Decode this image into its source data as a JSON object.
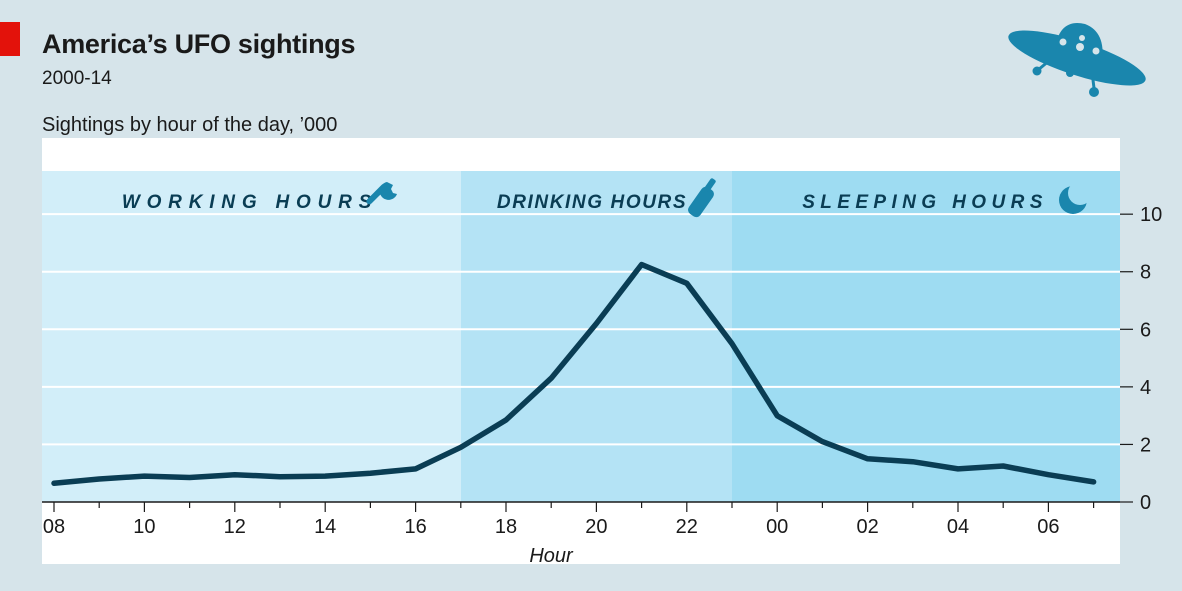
{
  "header": {
    "title": "America’s UFO sightings",
    "subtitle": "2000-14",
    "chart_label": "Sightings by hour of the day, ’000"
  },
  "icons": {
    "brand": "ufo-icon",
    "working": "wrench-icon",
    "drinking": "bottle-icon",
    "sleeping": "moon-icon"
  },
  "colors": {
    "background": "#d6e4ea",
    "plot_area": "#ffffff",
    "band_working": "#d2eef9",
    "band_drinking": "#b4e3f5",
    "band_sleeping": "#9edcf2",
    "line": "#0a3d54",
    "icon": "#1a86ad",
    "accent_red": "#e3120b",
    "text": "#1a1a1a"
  },
  "chart_data": {
    "type": "line",
    "title": "America’s UFO sightings",
    "subtitle": "2000-14",
    "ylabel": "Sightings by hour of the day, ’000",
    "xlabel": "Hour",
    "x": [
      "08",
      "09",
      "10",
      "11",
      "12",
      "13",
      "14",
      "15",
      "16",
      "17",
      "18",
      "19",
      "20",
      "21",
      "22",
      "23",
      "00",
      "01",
      "02",
      "03",
      "04",
      "05",
      "06",
      "07"
    ],
    "x_tick_labels": [
      "08",
      "10",
      "12",
      "14",
      "16",
      "18",
      "20",
      "22",
      "00",
      "02",
      "04",
      "06"
    ],
    "y_ticks": [
      0,
      2,
      4,
      6,
      8,
      10
    ],
    "ylim": [
      0,
      11.5
    ],
    "series": [
      {
        "values": [
          0.65,
          0.8,
          0.9,
          0.85,
          0.95,
          0.88,
          0.9,
          1.0,
          1.15,
          1.9,
          2.85,
          4.3,
          6.2,
          8.25,
          7.6,
          5.5,
          3.0,
          2.1,
          1.5,
          1.4,
          1.15,
          1.25,
          0.95,
          0.7
        ]
      }
    ],
    "bands": [
      {
        "label": "WORKING HOURS",
        "from": "08",
        "to": "17",
        "icon": "wrench-icon"
      },
      {
        "label": "DRINKING HOURS",
        "from": "17",
        "to": "23",
        "icon": "bottle-icon"
      },
      {
        "label": "SLEEPING HOURS",
        "from": "23",
        "to": "07",
        "icon": "moon-icon"
      }
    ],
    "y_axis_side": "right",
    "grid": true
  }
}
